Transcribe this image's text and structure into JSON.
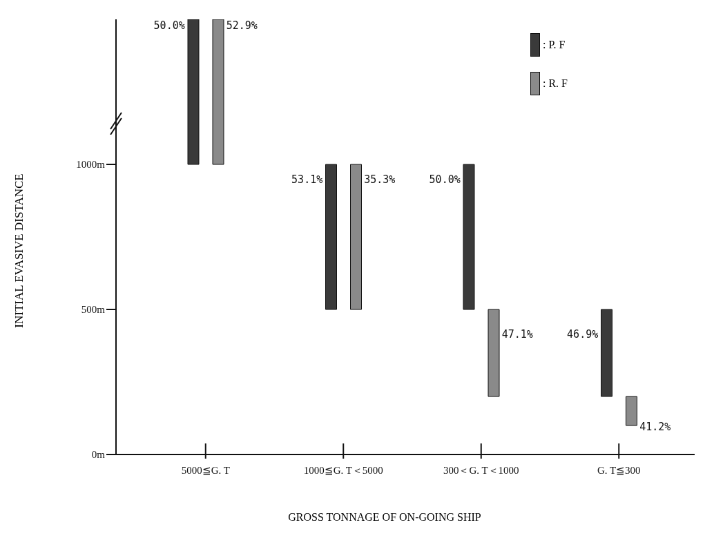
{
  "chart_data": {
    "type": "bar",
    "xlabel": "GROSS TONNAGE OF ON-GOING SHIP",
    "ylabel": "INITIAL EVASIVE DISTANCE",
    "categories": [
      "5000≦G. T",
      "1000≦G. T＜5000",
      "300＜G. T＜1000",
      "G. T≦300"
    ],
    "series": [
      {
        "name": ": P. F",
        "color": "#3a3a3a",
        "base": [
          1000,
          500,
          500,
          200
        ],
        "values": [
          500,
          500,
          500,
          300
        ]
      },
      {
        "name": ": R. F",
        "color": "#8a8a8a",
        "base": [
          1000,
          500,
          200,
          100
        ],
        "values": [
          500,
          500,
          300,
          100
        ]
      }
    ],
    "annotations": [
      "50.0%",
      "52.9%",
      "53.1%",
      "35.3%",
      "50.0%",
      "47.1%",
      "46.9%",
      "41.2%"
    ],
    "ylim": [
      0,
      1500
    ],
    "yticks": [
      {
        "value": 0,
        "label": "0m"
      },
      {
        "value": 500,
        "label": "500m"
      },
      {
        "value": 1000,
        "label": "1000m"
      }
    ],
    "legend": "top right"
  }
}
